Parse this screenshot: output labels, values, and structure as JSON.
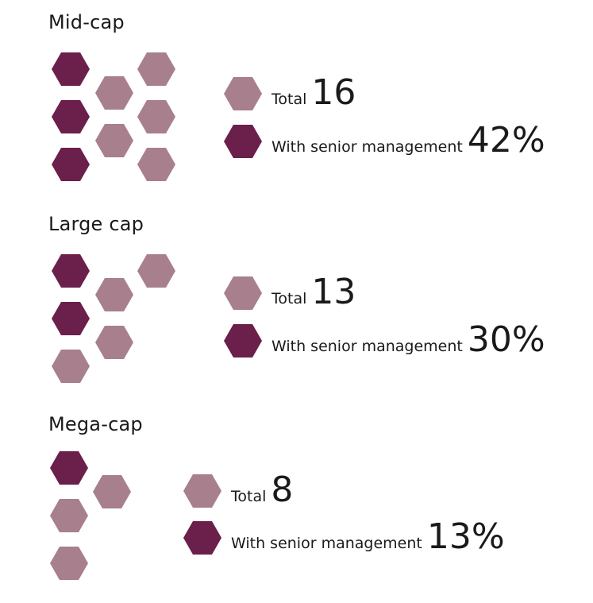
{
  "colors": {
    "senior": "#6b1f4b",
    "total": "#a87f8c"
  },
  "legend_labels": {
    "total": "Total",
    "senior": "With senior management"
  },
  "segments": [
    {
      "title": "Mid-cap",
      "total": "16",
      "senior_pct": "42%"
    },
    {
      "title": "Large cap",
      "total": "13",
      "senior_pct": "30%"
    },
    {
      "title": "Mega-cap",
      "total": "8",
      "senior_pct": "13%"
    }
  ]
}
